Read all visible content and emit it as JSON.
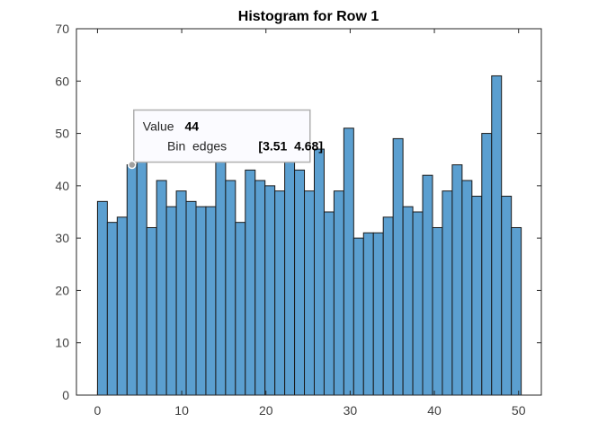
{
  "chart_data": {
    "type": "bar",
    "title": "Histogram for Row 1",
    "xlabel": "",
    "ylabel": "",
    "xlim": [
      -2.5,
      52.7
    ],
    "ylim": [
      0,
      70
    ],
    "bin_width": 1.17,
    "bin_start": 0,
    "values": [
      37,
      33,
      34,
      44,
      45,
      32,
      41,
      36,
      39,
      37,
      36,
      36,
      46,
      41,
      33,
      43,
      41,
      40,
      39,
      46,
      43,
      39,
      47,
      35,
      39,
      51,
      30,
      31,
      31,
      34,
      49,
      36,
      35,
      42,
      32,
      39,
      44,
      41,
      38,
      50,
      61,
      38,
      32
    ],
    "x_ticks": [
      0,
      10,
      20,
      30,
      40,
      50
    ],
    "y_ticks": [
      0,
      10,
      20,
      30,
      40,
      50,
      60,
      70
    ],
    "grid": false,
    "datatip": {
      "bin_index": 3,
      "value_label": "Value",
      "value": "44",
      "edges_label": "Bin  edges",
      "edges": "[3.51  4.68]"
    }
  }
}
